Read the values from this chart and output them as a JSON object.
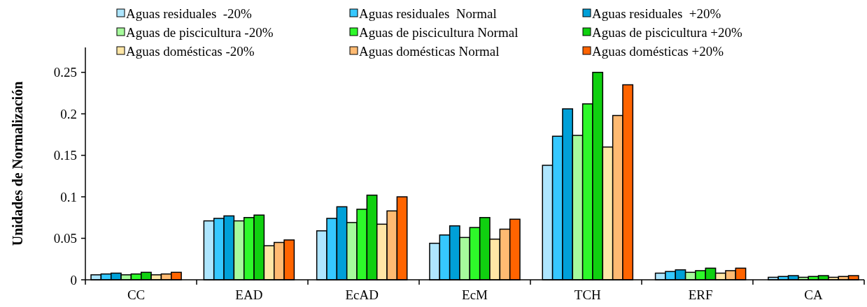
{
  "chart_data": {
    "type": "bar",
    "ylabel": "Unidades de Normalización",
    "categories": [
      "CC",
      "EAD",
      "EcAD",
      "EcM",
      "TCH",
      "ERF",
      "CA"
    ],
    "ylim": [
      0,
      0.28
    ],
    "yticks": [
      0,
      0.05,
      {
        "value": 0.1,
        "label": "0.1"
      },
      0.15,
      {
        "value": 0.2,
        "label": "0.2"
      },
      0.25
    ],
    "legend": "top",
    "grid": false,
    "series": [
      {
        "name": "Aguas residuales  -20%",
        "color": "#aee6ff",
        "values": [
          0.006,
          0.071,
          0.059,
          0.044,
          0.138,
          0.008,
          0.003
        ]
      },
      {
        "name": "Aguas residuales  Normal",
        "color": "#36c8ff",
        "values": [
          0.007,
          0.074,
          0.074,
          0.054,
          0.173,
          0.01,
          0.004
        ]
      },
      {
        "name": "Aguas residuales  +20%",
        "color": "#00a0d8",
        "values": [
          0.008,
          0.077,
          0.088,
          0.065,
          0.206,
          0.012,
          0.005
        ]
      },
      {
        "name": "Aguas de piscicultura -20%",
        "color": "#a6fa9c",
        "values": [
          0.006,
          0.071,
          0.069,
          0.051,
          0.174,
          0.009,
          0.003
        ]
      },
      {
        "name": "Aguas de piscicultura Normal",
        "color": "#2ef82a",
        "values": [
          0.007,
          0.075,
          0.085,
          0.063,
          0.212,
          0.011,
          0.004
        ]
      },
      {
        "name": "Aguas de piscicultura +20%",
        "color": "#10d010",
        "values": [
          0.009,
          0.078,
          0.102,
          0.075,
          0.25,
          0.014,
          0.005
        ]
      },
      {
        "name": "Aguas domésticas -20%",
        "color": "#ffe6a6",
        "values": [
          0.006,
          0.041,
          0.067,
          0.049,
          0.16,
          0.008,
          0.003
        ]
      },
      {
        "name": "Aguas domésticas Normal",
        "color": "#ffba72",
        "values": [
          0.007,
          0.045,
          0.083,
          0.061,
          0.198,
          0.011,
          0.004
        ]
      },
      {
        "name": "Aguas domésticas +20%",
        "color": "#ff6400",
        "values": [
          0.009,
          0.048,
          0.1,
          0.073,
          0.235,
          0.014,
          0.005
        ]
      }
    ]
  }
}
